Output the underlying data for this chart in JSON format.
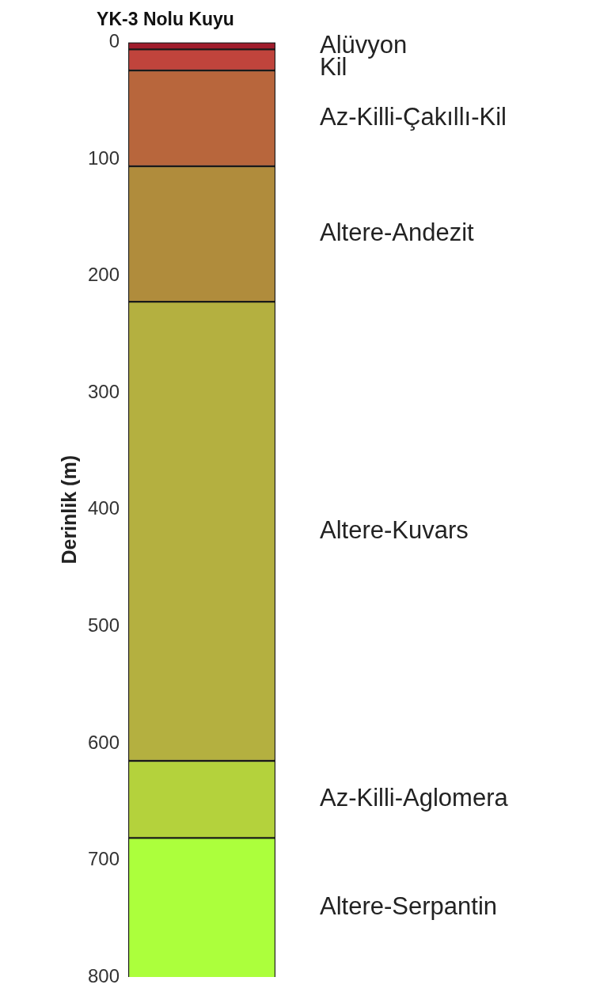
{
  "chart_data": {
    "type": "bar",
    "stacked": true,
    "title": "YK-3 Nolu Kuyu",
    "ylabel": "Derinlik (m)",
    "categories": [
      null
    ],
    "series": [
      {
        "name": "Alüvyon",
        "color": "#a01c2c",
        "values": [
          6
        ]
      },
      {
        "name": "Kil",
        "color": "#c0443c",
        "values": [
          18
        ]
      },
      {
        "name": "Az-Killi-Çakıllı-Kil",
        "color": "#b8663c",
        "values": [
          82
        ]
      },
      {
        "name": "Altere-Andezit",
        "color": "#b08c3c",
        "values": [
          116
        ]
      },
      {
        "name": "Altere-Kuvars",
        "color": "#b4b040",
        "values": [
          393
        ]
      },
      {
        "name": "Az-Killi-Aglomera",
        "color": "#b4d23c",
        "values": [
          66
        ]
      },
      {
        "name": "Altere-Serpantin",
        "color": "#acff3c",
        "values": [
          120
        ]
      }
    ],
    "ylim": [
      800,
      0
    ],
    "yticks": [
      0,
      100,
      200,
      300,
      400,
      500,
      600,
      700,
      800
    ],
    "grid": false,
    "legend": false,
    "tick_labels": "y"
  }
}
